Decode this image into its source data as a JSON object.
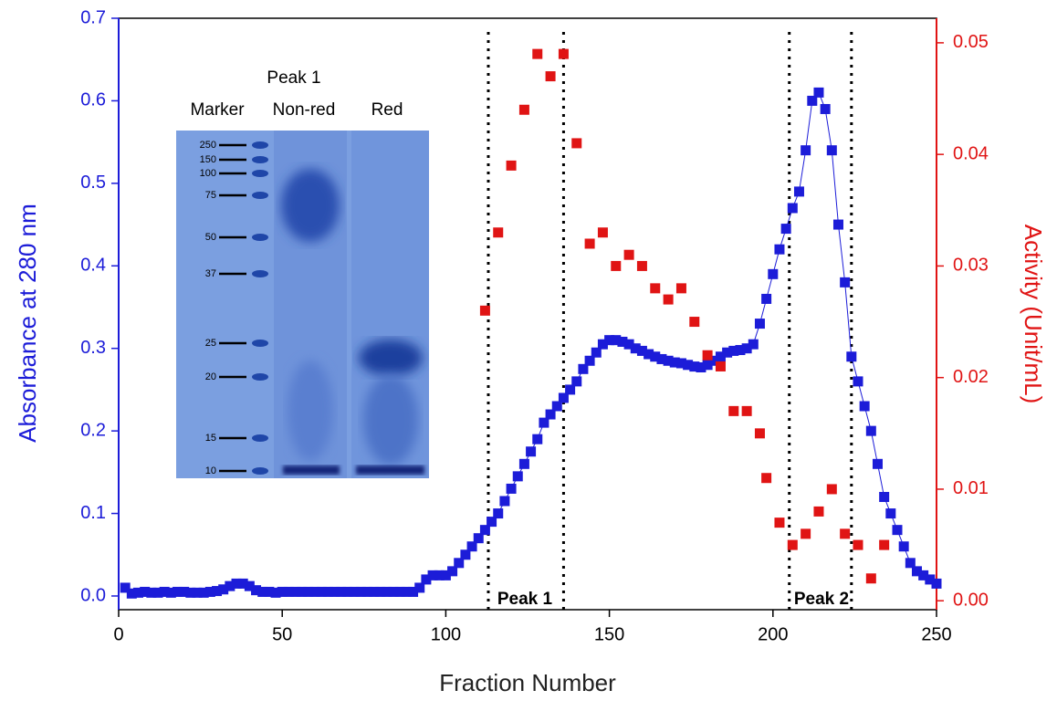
{
  "chart_data": {
    "type": "scatter",
    "xlabel": "Fraction Number",
    "ylabel": "Absorbance at 280 nm",
    "y2label": "Activity (Unit/mL)",
    "xlim": [
      0,
      250
    ],
    "ylim": [
      -0.0166,
      0.7
    ],
    "y2lim": [
      -0.0008,
      0.0522
    ],
    "xticks": [
      0,
      50,
      100,
      150,
      200,
      250
    ],
    "yticks": [
      {
        "value": 0,
        "label": "0.0"
      },
      0.1,
      0.2,
      0.3,
      0.4,
      0.5,
      0.6,
      0.7
    ],
    "y2ticks": [
      {
        "value": 0,
        "label": "0.00"
      },
      0.01,
      0.02,
      0.03,
      0.04,
      0.05
    ],
    "grid": false,
    "series": [
      {
        "color": "#1c1cd8",
        "axis": "y",
        "connect": true,
        "x": [
          2,
          4,
          6,
          8,
          10,
          12,
          14,
          16,
          18,
          20,
          22,
          24,
          26,
          28,
          30,
          32,
          34,
          36,
          38,
          40,
          42,
          44,
          46,
          48,
          50,
          52,
          54,
          56,
          58,
          60,
          62,
          64,
          66,
          68,
          70,
          72,
          74,
          76,
          78,
          80,
          82,
          84,
          86,
          88,
          90,
          92,
          94,
          96,
          98,
          100,
          102,
          104,
          106,
          108,
          110,
          112,
          114,
          116,
          118,
          120,
          122,
          124,
          126,
          128,
          130,
          132,
          134,
          136,
          138,
          140,
          142,
          144,
          146,
          148,
          150,
          152,
          154,
          156,
          158,
          160,
          162,
          164,
          166,
          168,
          170,
          172,
          174,
          176,
          178,
          180,
          182,
          184,
          186,
          188,
          190,
          192,
          194,
          196,
          198,
          200,
          202,
          204,
          206,
          208,
          210,
          212,
          214,
          216,
          218,
          220,
          222,
          224,
          226,
          228,
          230,
          232,
          234,
          236,
          238,
          240,
          242,
          244,
          246,
          248,
          250
        ],
        "values": [
          0.01,
          0.003,
          0.004,
          0.005,
          0.004,
          0.004,
          0.005,
          0.004,
          0.005,
          0.005,
          0.004,
          0.004,
          0.004,
          0.005,
          0.006,
          0.008,
          0.012,
          0.015,
          0.015,
          0.012,
          0.007,
          0.005,
          0.005,
          0.004,
          0.005,
          0.005,
          0.005,
          0.005,
          0.005,
          0.005,
          0.005,
          0.005,
          0.005,
          0.005,
          0.005,
          0.005,
          0.005,
          0.005,
          0.005,
          0.005,
          0.005,
          0.005,
          0.005,
          0.005,
          0.005,
          0.01,
          0.02,
          0.025,
          0.025,
          0.025,
          0.03,
          0.04,
          0.05,
          0.06,
          0.07,
          0.08,
          0.09,
          0.1,
          0.115,
          0.13,
          0.145,
          0.16,
          0.175,
          0.19,
          0.21,
          0.22,
          0.23,
          0.24,
          0.25,
          0.26,
          0.275,
          0.285,
          0.295,
          0.305,
          0.31,
          0.31,
          0.308,
          0.305,
          0.3,
          0.297,
          0.293,
          0.29,
          0.287,
          0.285,
          0.283,
          0.282,
          0.28,
          0.278,
          0.277,
          0.28,
          0.285,
          0.29,
          0.295,
          0.297,
          0.298,
          0.3,
          0.305,
          0.33,
          0.36,
          0.39,
          0.42,
          0.445,
          0.47,
          0.49,
          0.54,
          0.6,
          0.61,
          0.59,
          0.54,
          0.45,
          0.38,
          0.29,
          0.26,
          0.23,
          0.2,
          0.16,
          0.12,
          0.1,
          0.08,
          0.06,
          0.04,
          0.03,
          0.025,
          0.02,
          0.015
        ]
      },
      {
        "color": "#e01414",
        "axis": "y2",
        "connect": false,
        "x": [
          112,
          116,
          120,
          124,
          128,
          132,
          136,
          140,
          144,
          148,
          152,
          156,
          160,
          164,
          168,
          172,
          176,
          180,
          184,
          188,
          192,
          196,
          198,
          202,
          206,
          210,
          214,
          218,
          222,
          226,
          230,
          234
        ],
        "values": [
          0.026,
          0.033,
          0.039,
          0.044,
          0.049,
          0.047,
          0.049,
          0.041,
          0.032,
          0.033,
          0.03,
          0.031,
          0.03,
          0.028,
          0.027,
          0.028,
          0.025,
          0.022,
          0.021,
          0.017,
          0.017,
          0.015,
          0.011,
          0.007,
          0.005,
          0.006,
          0.008,
          0.01,
          0.006,
          0.005,
          0.002,
          0.005
        ]
      }
    ],
    "vlines": [
      113,
      136,
      205,
      224
    ],
    "annotations": [
      "Peak 1",
      "Peak 2"
    ],
    "inset": {
      "header": "Peak 1",
      "lanes": [
        "Marker",
        "Non-red",
        "Red"
      ],
      "ladder": [
        250,
        150,
        100,
        75,
        50,
        37,
        25,
        20,
        15,
        10
      ]
    }
  }
}
